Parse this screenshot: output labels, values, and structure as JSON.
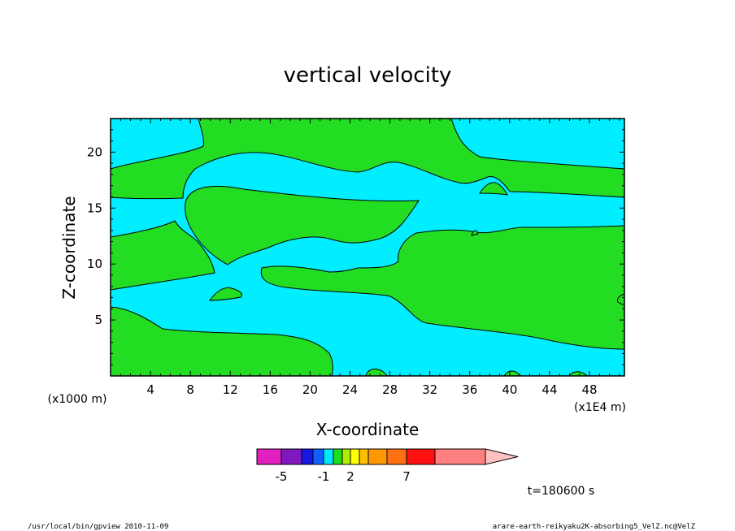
{
  "chart_data": {
    "type": "heatmap",
    "title": "vertical velocity",
    "xlabel": "X-coordinate",
    "ylabel": "Z-coordinate",
    "x_units": "(x1E4 m)",
    "y_units": "(x1000 m)",
    "xlim": [
      0,
      51.5
    ],
    "ylim": [
      0,
      23
    ],
    "x_ticks": [
      "4",
      "8",
      "12",
      "16",
      "20",
      "24",
      "28",
      "32",
      "36",
      "40",
      "44",
      "48"
    ],
    "y_ticks": [
      "5",
      "10",
      "15",
      "20"
    ],
    "grid": false,
    "regions": [
      {
        "name": "positive",
        "color": "#22dd22"
      },
      {
        "name": "near-zero",
        "color": "#00eeff"
      }
    ],
    "colorbar": {
      "colors": [
        "#e020c0",
        "#8018c0",
        "#1818e0",
        "#1060ff",
        "#00e8ff",
        "#20dd20",
        "#b0ee00",
        "#ffff00",
        "#ffc000",
        "#ff9800",
        "#ff7010",
        "#ff1010",
        "#ff8080",
        "#ffc0c0"
      ],
      "tick_labels": [
        "-5",
        "-1",
        "2",
        "7"
      ]
    },
    "annotation": "t=180600 s"
  },
  "footer": {
    "left": "/usr/local/bin/gpview  2010-11-09",
    "right": "arare-earth-reikyaku2K-absorbing5_VelZ.nc@VelZ"
  }
}
